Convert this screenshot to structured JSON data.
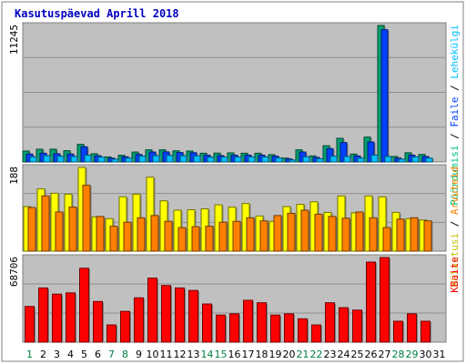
{
  "title": "Kasutuspäevad Aprill 2018",
  "colors": {
    "background": "#ffffff",
    "plot_bg": "#c0c0c0",
    "title": "#0000c0",
    "weekday_label": "#000000",
    "weekend_label": "#008040",
    "pages_color": "#00c080",
    "files_color": "#0040ff",
    "hits_color": "#00c0ff",
    "visits_color": "#ffff00",
    "sites_color": "#ff8000",
    "kbytes_color": "#ff0000"
  },
  "chart_data": [
    {
      "type": "bar",
      "panel": "hits-files-pages",
      "ymax_label": "11245",
      "ylim": [
        0,
        11245
      ],
      "side_legend": [
        {
          "text": "Pöördumisi",
          "color": "#00c080"
        },
        {
          "text": "Faile",
          "color": "#0040ff"
        },
        {
          "text": "Lehekülgi",
          "color": "#00c0ff"
        }
      ],
      "series": [
        {
          "name": "Pöördumisi",
          "color": "#00a070",
          "values": [
            900,
            1050,
            1050,
            930,
            1450,
            680,
            420,
            550,
            820,
            1000,
            1000,
            920,
            900,
            720,
            730,
            750,
            720,
            720,
            600,
            320,
            1000,
            500,
            1340,
            1950,
            650,
            2050,
            11245,
            450,
            760,
            620
          ]
        },
        {
          "name": "Faile",
          "color": "#0040ff",
          "values": [
            650,
            720,
            680,
            650,
            1250,
            520,
            320,
            430,
            620,
            820,
            830,
            780,
            760,
            560,
            520,
            560,
            560,
            560,
            480,
            250,
            820,
            380,
            1100,
            1600,
            500,
            1650,
            10900,
            320,
            560,
            450
          ]
        },
        {
          "name": "Lehekülgi",
          "color": "#00c0ff",
          "values": [
            420,
            520,
            470,
            450,
            560,
            400,
            230,
            320,
            480,
            520,
            540,
            520,
            500,
            400,
            410,
            410,
            420,
            420,
            330,
            160,
            430,
            270,
            480,
            450,
            320,
            570,
            460,
            230,
            420,
            320
          ]
        }
      ]
    },
    {
      "type": "bar",
      "panel": "visits-sites",
      "ymax_label": "188",
      "ylim": [
        0,
        188
      ],
      "side_legend": [
        {
          "text": "Külastusi",
          "color": "#c0c000"
        },
        {
          "text": "Arvuteid",
          "color": "#ff8000"
        }
      ],
      "series": [
        {
          "name": "Külastusi",
          "color": "#ffff00",
          "values": [
            100,
            140,
            130,
            128,
            188,
            77,
            73,
            122,
            128,
            166,
            113,
            92,
            93,
            95,
            104,
            99,
            107,
            79,
            67,
            100,
            105,
            111,
            87,
            124,
            86,
            124,
            122,
            87,
            73,
            70
          ]
        },
        {
          "name": "Arvuteid",
          "color": "#ff8000",
          "values": [
            98,
            124,
            88,
            99,
            148,
            78,
            56,
            65,
            75,
            80,
            67,
            53,
            55,
            56,
            65,
            67,
            75,
            68,
            80,
            85,
            92,
            83,
            78,
            74,
            88,
            75,
            53,
            72,
            75,
            68
          ]
        }
      ]
    },
    {
      "type": "bar",
      "panel": "kbytes",
      "ymax_label": "68706",
      "ylim": [
        0,
        68706
      ],
      "side_legend": [
        {
          "text": "KBaite",
          "color": "#ff0000"
        }
      ],
      "series": [
        {
          "name": "KBaite",
          "color": "#ff0000",
          "values": [
            29000,
            44000,
            39000,
            40000,
            60000,
            33000,
            14000,
            25000,
            36000,
            52000,
            46000,
            44000,
            42000,
            31000,
            22000,
            23000,
            34000,
            32000,
            22000,
            23000,
            19000,
            14000,
            32000,
            28000,
            26000,
            65000,
            68706,
            17000,
            23000,
            17000
          ]
        }
      ]
    }
  ],
  "x_axis": {
    "labels": [
      "1",
      "2",
      "3",
      "4",
      "5",
      "6",
      "7",
      "8",
      "9",
      "10",
      "11",
      "12",
      "13",
      "14",
      "15",
      "16",
      "17",
      "18",
      "19",
      "20",
      "21",
      "22",
      "23",
      "24",
      "25",
      "26",
      "27",
      "28",
      "29",
      "30",
      "31"
    ],
    "weekend_indices": [
      0,
      6,
      7,
      13,
      14,
      20,
      21,
      27,
      28
    ]
  }
}
